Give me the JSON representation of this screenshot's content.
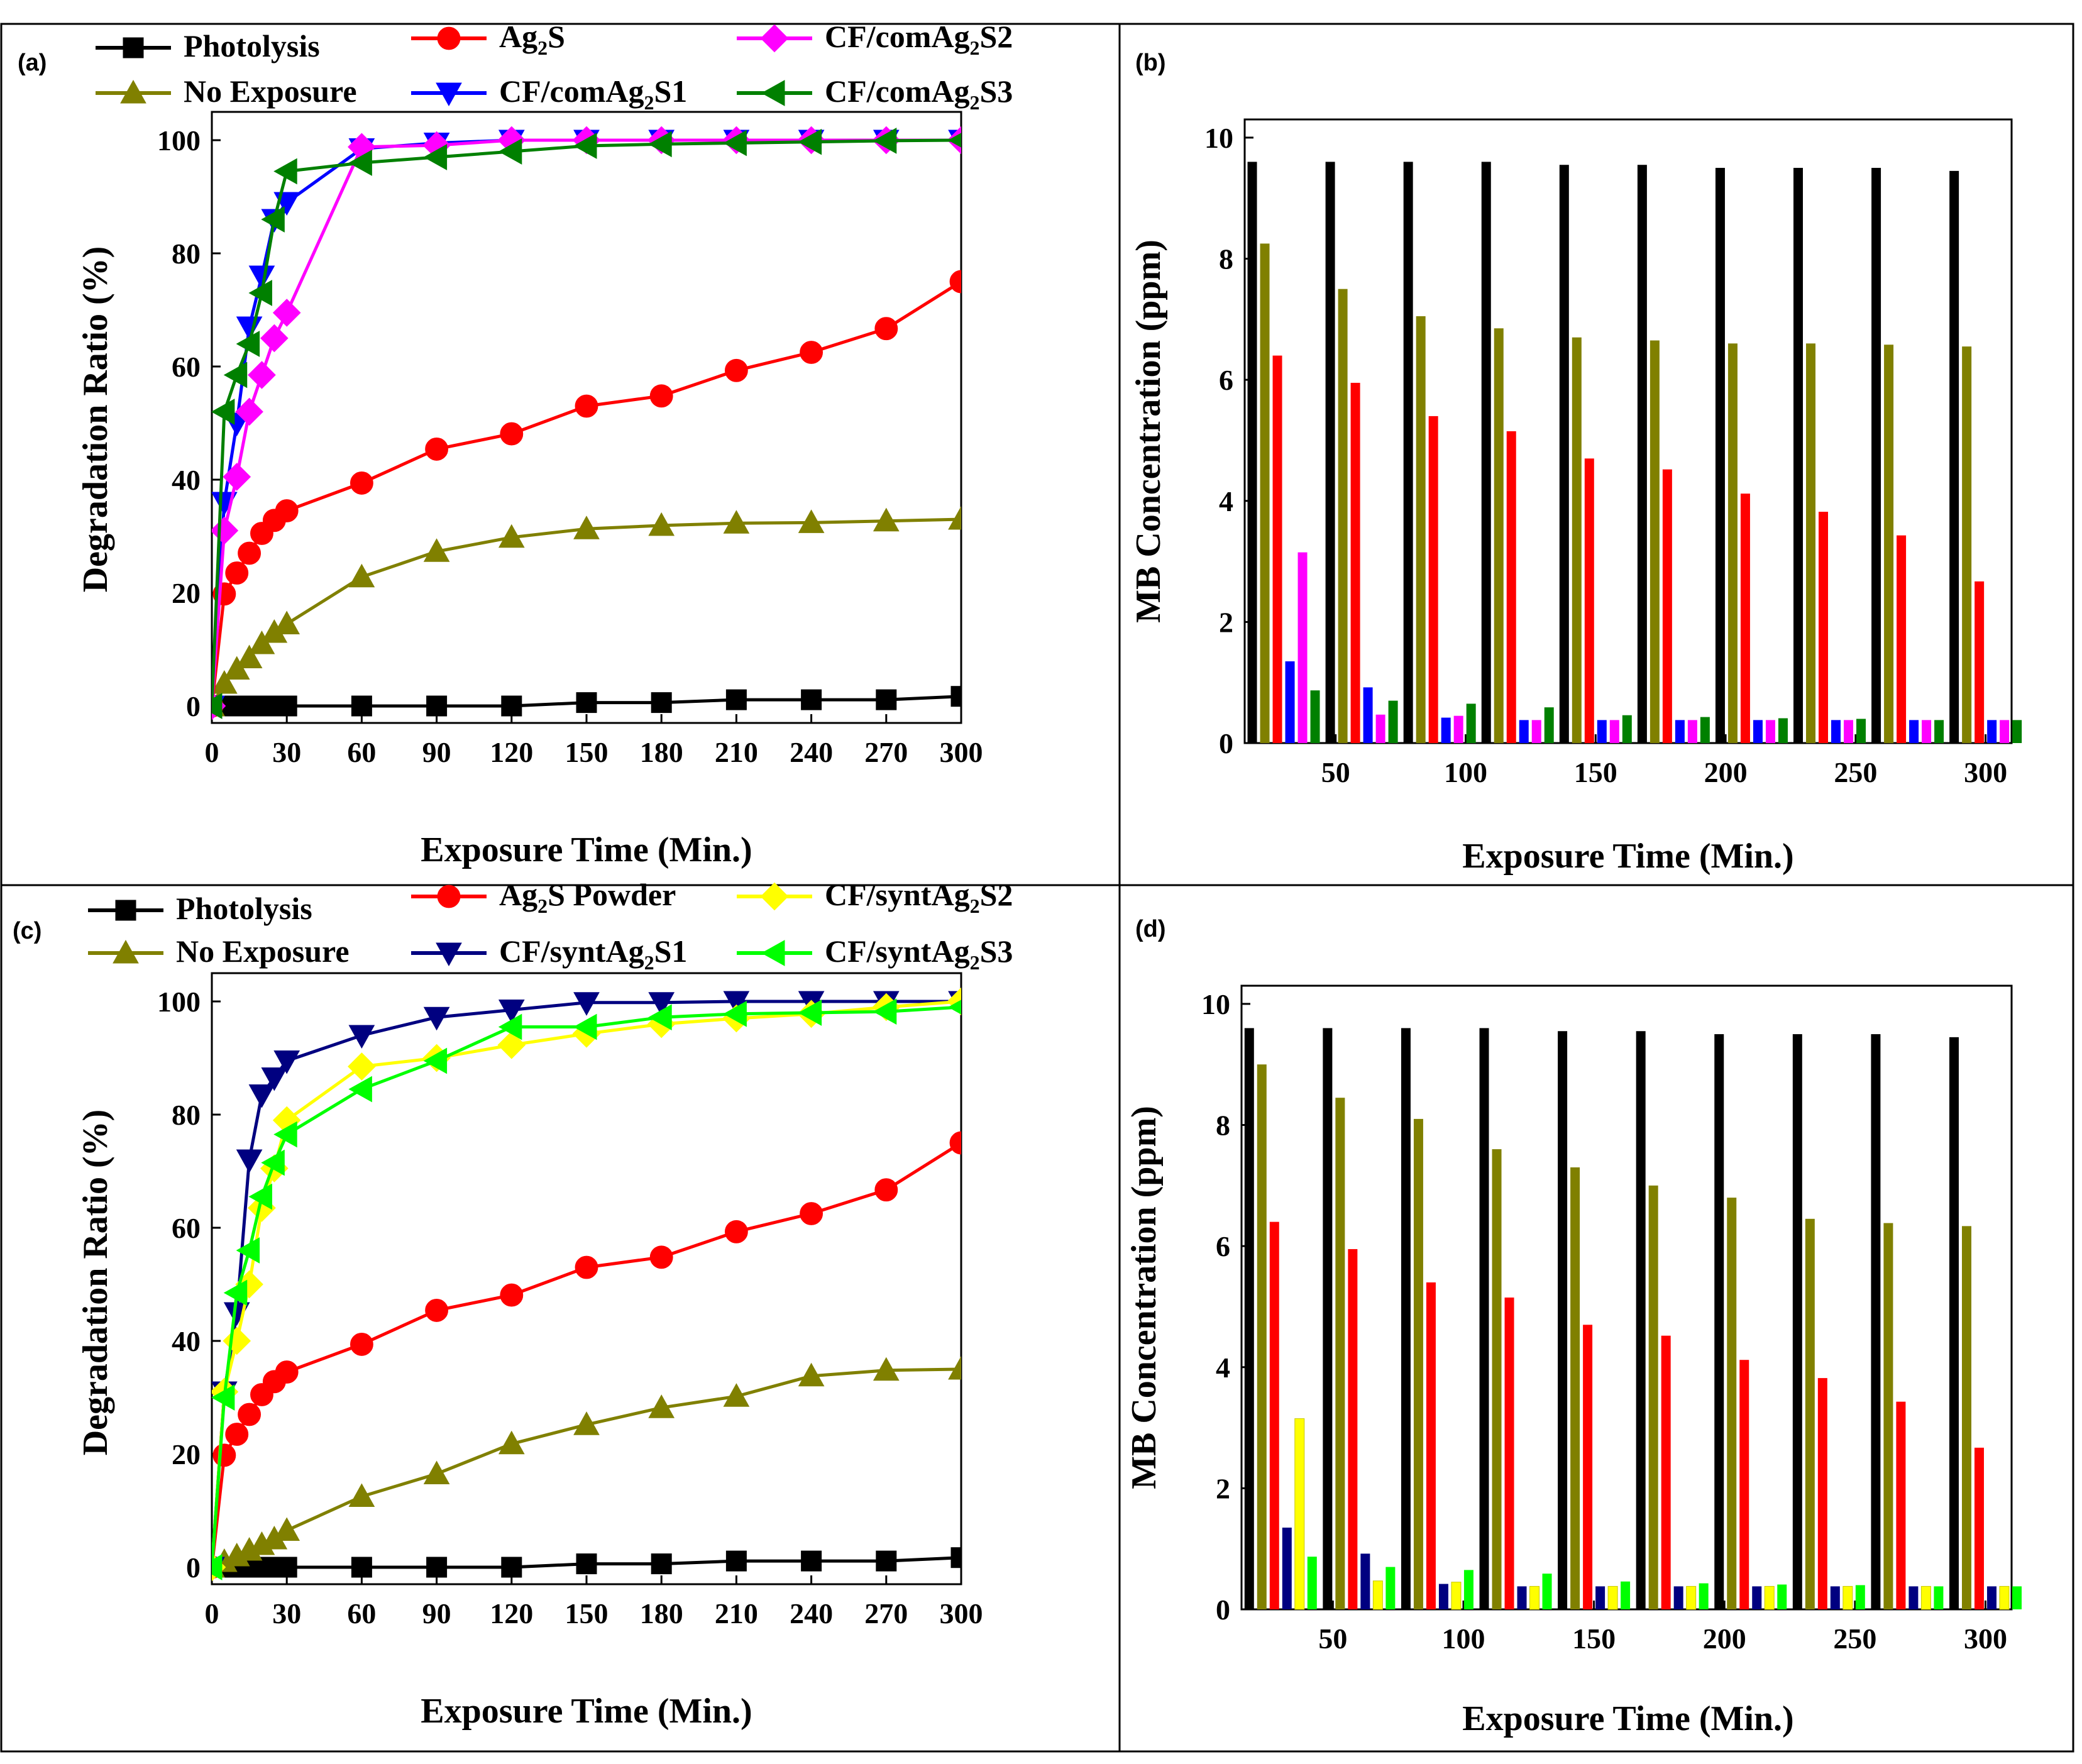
{
  "chart_data": [
    {
      "panel": "(a)",
      "type": "line",
      "xlabel": "Exposure Time (Min.)",
      "ylabel": "Degradation Ratio (%)",
      "xlim": [
        0,
        300
      ],
      "ylim": [
        -3,
        105
      ],
      "xticks": [
        0,
        30,
        60,
        90,
        120,
        150,
        180,
        210,
        240,
        270,
        300
      ],
      "yticks": [
        0,
        20,
        40,
        60,
        80,
        100
      ],
      "grid": false,
      "legend_position": "top",
      "series": [
        {
          "name": "Photolysis",
          "label_main": "Photolysis",
          "label_sub": "",
          "label_tail": "",
          "color": "#000000",
          "marker": "square",
          "x": [
            0,
            5,
            10,
            15,
            20,
            25,
            30,
            60,
            90,
            120,
            150,
            180,
            210,
            240,
            270,
            300
          ],
          "values": [
            0,
            0,
            0,
            0,
            0,
            0,
            0,
            0,
            0,
            0,
            0.6,
            0.6,
            1.1,
            1.1,
            1.1,
            1.7
          ]
        },
        {
          "name": "No Exposure",
          "label_main": "No Exposure",
          "label_sub": "",
          "label_tail": "",
          "color": "#808000",
          "marker": "triangle-up",
          "x": [
            0,
            5,
            10,
            15,
            20,
            25,
            30,
            60,
            90,
            120,
            150,
            180,
            210,
            240,
            270,
            300
          ],
          "values": [
            0,
            4,
            6.5,
            8.5,
            11,
            13,
            14.5,
            22.8,
            27.3,
            29.8,
            31.3,
            31.9,
            32.3,
            32.4,
            32.7,
            33
          ]
        },
        {
          "name": "Ag2S",
          "label_main": "Ag",
          "label_sub": "2",
          "label_tail": "S",
          "color": "#ff0000",
          "marker": "circle",
          "x": [
            0,
            5,
            10,
            15,
            20,
            25,
            30,
            60,
            90,
            120,
            150,
            180,
            210,
            240,
            270,
            300
          ],
          "values": [
            0,
            19.8,
            23.5,
            27,
            30.5,
            32.8,
            34.5,
            39.4,
            45.4,
            48.1,
            53,
            54.8,
            59.3,
            62.5,
            66.7,
            75
          ]
        },
        {
          "name": "CF/comAg2S1",
          "label_main": "CF/comAg",
          "label_sub": "2",
          "label_tail": "S1",
          "color": "#0000ff",
          "marker": "triangle-down",
          "x": [
            0,
            5,
            10,
            15,
            20,
            25,
            30,
            60,
            90,
            120,
            150,
            180,
            210,
            240,
            270,
            300
          ],
          "values": [
            0,
            36,
            50,
            67,
            76,
            86,
            89,
            98.5,
            99.5,
            100,
            100,
            100,
            100,
            100,
            100,
            100
          ]
        },
        {
          "name": "CF/comAg2S2",
          "label_main": "CF/comAg",
          "label_sub": "2",
          "label_tail": "S2",
          "color": "#ff00ff",
          "marker": "diamond",
          "x": [
            0,
            5,
            10,
            15,
            20,
            25,
            30,
            60,
            90,
            120,
            150,
            180,
            210,
            240,
            270,
            300
          ],
          "values": [
            0,
            31,
            40.5,
            52,
            58.5,
            65,
            69.5,
            98.8,
            99.1,
            100,
            100,
            100,
            100,
            100,
            100,
            100
          ]
        },
        {
          "name": "CF/comAg2S3",
          "label_main": "CF/comAg",
          "label_sub": "2",
          "label_tail": "S3",
          "color": "#008000",
          "marker": "triangle-left",
          "x": [
            0,
            5,
            10,
            15,
            20,
            25,
            30,
            60,
            90,
            120,
            150,
            180,
            210,
            240,
            270,
            300
          ],
          "values": [
            0,
            52,
            58.5,
            64,
            73,
            86,
            94.5,
            96,
            97,
            98,
            99,
            99.3,
            99.5,
            99.7,
            99.9,
            100
          ]
        }
      ]
    },
    {
      "panel": "(b)",
      "type": "bar",
      "xlabel": "Exposure Time (Min.)",
      "ylabel": "MB Concentration (ppm)",
      "xlim": [
        15,
        310
      ],
      "ylim": [
        0,
        10.3
      ],
      "xticks": [
        50,
        100,
        150,
        200,
        250,
        300
      ],
      "yticks": [
        0,
        2,
        4,
        6,
        8,
        10
      ],
      "grid": false,
      "categories": [
        30,
        60,
        90,
        120,
        150,
        180,
        210,
        240,
        270,
        300
      ],
      "series": [
        {
          "name": "Photolysis",
          "color": "#000000",
          "values": [
            9.6,
            9.6,
            9.6,
            9.6,
            9.55,
            9.55,
            9.5,
            9.5,
            9.5,
            9.45
          ]
        },
        {
          "name": "No Exposure",
          "color": "#808000",
          "values": [
            8.25,
            7.5,
            7.05,
            6.85,
            6.7,
            6.65,
            6.6,
            6.6,
            6.58,
            6.55
          ]
        },
        {
          "name": "Ag2S",
          "color": "#ff0000",
          "values": [
            6.4,
            5.95,
            5.4,
            5.15,
            4.7,
            4.52,
            4.12,
            3.82,
            3.43,
            2.67
          ]
        },
        {
          "name": "CF/comAg2S1",
          "color": "#0000ff",
          "values": [
            1.35,
            0.92,
            0.42,
            0.38,
            0.38,
            0.38,
            0.38,
            0.38,
            0.38,
            0.38
          ]
        },
        {
          "name": "CF/comAg2S2",
          "color": "#ff00ff",
          "values": [
            3.15,
            0.47,
            0.45,
            0.38,
            0.38,
            0.38,
            0.38,
            0.38,
            0.38,
            0.38
          ]
        },
        {
          "name": "CF/comAg2S3",
          "color": "#008000",
          "values": [
            0.87,
            0.7,
            0.65,
            0.59,
            0.46,
            0.43,
            0.41,
            0.4,
            0.38,
            0.38
          ]
        }
      ]
    },
    {
      "panel": "(c)",
      "type": "line",
      "xlabel": "Exposure Time (Min.)",
      "ylabel": "Degradation Ratio (%)",
      "xlim": [
        0,
        300
      ],
      "ylim": [
        -3,
        105
      ],
      "xticks": [
        0,
        30,
        60,
        90,
        120,
        150,
        180,
        210,
        240,
        270,
        300
      ],
      "yticks": [
        0,
        20,
        40,
        60,
        80,
        100
      ],
      "grid": false,
      "legend_position": "top",
      "series": [
        {
          "name": "Photolysis",
          "label_main": "Photolysis",
          "label_sub": "",
          "label_tail": "",
          "color": "#000000",
          "marker": "square",
          "x": [
            0,
            5,
            10,
            15,
            20,
            25,
            30,
            60,
            90,
            120,
            150,
            180,
            210,
            240,
            270,
            300
          ],
          "values": [
            0,
            0,
            0,
            0,
            0,
            0,
            0,
            0,
            0,
            0,
            0.6,
            0.6,
            1.1,
            1.1,
            1.1,
            1.7
          ]
        },
        {
          "name": "No Exposure",
          "label_main": "No Exposure",
          "label_sub": "",
          "label_tail": "",
          "color": "#808000",
          "marker": "triangle-up",
          "x": [
            0,
            5,
            10,
            15,
            20,
            25,
            30,
            60,
            90,
            120,
            150,
            180,
            210,
            240,
            270,
            300
          ],
          "values": [
            0,
            1,
            2,
            3,
            4,
            5,
            6.5,
            12.5,
            16.5,
            21.8,
            25.2,
            28.2,
            30.2,
            33.8,
            34.8,
            35
          ]
        },
        {
          "name": "Ag2S Powder",
          "label_main": "Ag",
          "label_sub": "2",
          "label_tail": "S Powder",
          "color": "#ff0000",
          "marker": "circle",
          "x": [
            0,
            5,
            10,
            15,
            20,
            25,
            30,
            60,
            90,
            120,
            150,
            180,
            210,
            240,
            270,
            300
          ],
          "values": [
            0,
            19.8,
            23.5,
            27,
            30.5,
            32.8,
            34.5,
            39.4,
            45.4,
            48.1,
            53,
            54.8,
            59.3,
            62.5,
            66.7,
            75
          ]
        },
        {
          "name": "CF/syntAg2S1",
          "label_main": "CF/syntAg",
          "label_sub": "2",
          "label_tail": "S1",
          "color": "#000080",
          "marker": "triangle-down",
          "x": [
            0,
            5,
            10,
            15,
            20,
            25,
            30,
            60,
            90,
            120,
            150,
            180,
            210,
            240,
            270,
            300
          ],
          "values": [
            0,
            31,
            45,
            72,
            83.5,
            86.5,
            89.5,
            94,
            97.2,
            98.5,
            99.8,
            99.8,
            100,
            100,
            100,
            100
          ]
        },
        {
          "name": "CF/syntAg2S2",
          "label_main": "CF/syntAg",
          "label_sub": "2",
          "label_tail": "S2",
          "color": "#ffff00",
          "marker": "diamond",
          "x": [
            0,
            5,
            10,
            15,
            20,
            25,
            30,
            60,
            90,
            120,
            150,
            180,
            210,
            240,
            270,
            300
          ],
          "values": [
            0,
            31,
            40,
            50,
            63.5,
            70.5,
            79,
            88.5,
            90,
            92.3,
            94.3,
            96,
            97,
            97.8,
            99,
            100
          ]
        },
        {
          "name": "CF/syntAg2S3",
          "label_main": "CF/syntAg",
          "label_sub": "2",
          "label_tail": "S3",
          "color": "#00ff00",
          "marker": "triangle-left",
          "x": [
            0,
            5,
            10,
            15,
            20,
            25,
            30,
            60,
            90,
            120,
            150,
            180,
            210,
            240,
            270,
            300
          ],
          "values": [
            0,
            30,
            48.5,
            56,
            65.5,
            71.5,
            76.5,
            84.5,
            89.5,
            95.5,
            95.5,
            97.2,
            97.8,
            98,
            98.2,
            99
          ]
        }
      ]
    },
    {
      "panel": "(d)",
      "type": "bar",
      "xlabel": "Exposure Time (Min.)",
      "ylabel": "MB Concentration (ppm)",
      "xlim": [
        15,
        310
      ],
      "ylim": [
        0,
        10.3
      ],
      "xticks": [
        50,
        100,
        150,
        200,
        250,
        300
      ],
      "yticks": [
        0,
        2,
        4,
        6,
        8,
        10
      ],
      "grid": false,
      "categories": [
        30,
        60,
        90,
        120,
        150,
        180,
        210,
        240,
        270,
        300
      ],
      "series": [
        {
          "name": "Photolysis",
          "color": "#000000",
          "values": [
            9.6,
            9.6,
            9.6,
            9.6,
            9.55,
            9.55,
            9.5,
            9.5,
            9.5,
            9.45
          ]
        },
        {
          "name": "No Exposure",
          "color": "#808000",
          "values": [
            9.0,
            8.45,
            8.1,
            7.6,
            7.3,
            7.0,
            6.8,
            6.45,
            6.38,
            6.33
          ]
        },
        {
          "name": "Ag2S Powder",
          "color": "#ff0000",
          "values": [
            6.4,
            5.95,
            5.4,
            5.15,
            4.7,
            4.52,
            4.12,
            3.82,
            3.43,
            2.67
          ]
        },
        {
          "name": "CF/syntAg2S1",
          "color": "#000080",
          "values": [
            1.35,
            0.92,
            0.42,
            0.38,
            0.38,
            0.38,
            0.38,
            0.38,
            0.38,
            0.38
          ]
        },
        {
          "name": "CF/syntAg2S2",
          "color": "#ffff00",
          "values": [
            3.15,
            0.47,
            0.45,
            0.38,
            0.38,
            0.38,
            0.38,
            0.38,
            0.38,
            0.38
          ]
        },
        {
          "name": "CF/syntAg2S3",
          "color": "#00ff00",
          "values": [
            0.87,
            0.7,
            0.65,
            0.59,
            0.46,
            0.43,
            0.41,
            0.4,
            0.38,
            0.38
          ]
        }
      ]
    }
  ]
}
